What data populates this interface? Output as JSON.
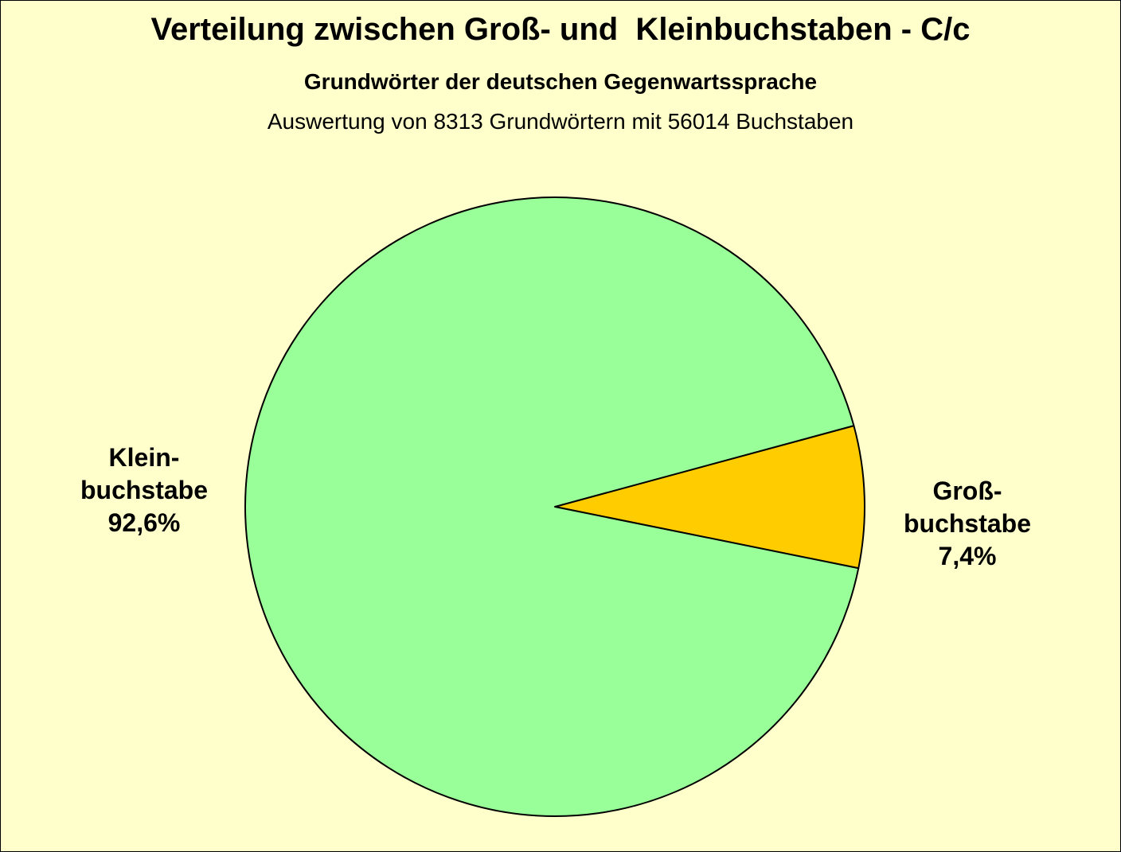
{
  "chart_data": {
    "type": "pie",
    "title": "Verteilung zwischen Groß- und  Kleinbuchstaben - C/c",
    "subtitle": "Grundwörter der deutschen Gegenwartssprache",
    "caption": "Auswertung von 8313 Grundwörtern mit 56014 Buchstaben",
    "slices": [
      {
        "label_line1": "Groß-",
        "label_line2": "buchstabe",
        "value": 7.4,
        "value_label": "7,4%",
        "color": "#ffcc00"
      },
      {
        "label_line1": "Klein-",
        "label_line2": "buchstabe",
        "value": 92.6,
        "value_label": "92,6%",
        "color": "#99ff99"
      }
    ],
    "background_color": "#ffffcc"
  }
}
